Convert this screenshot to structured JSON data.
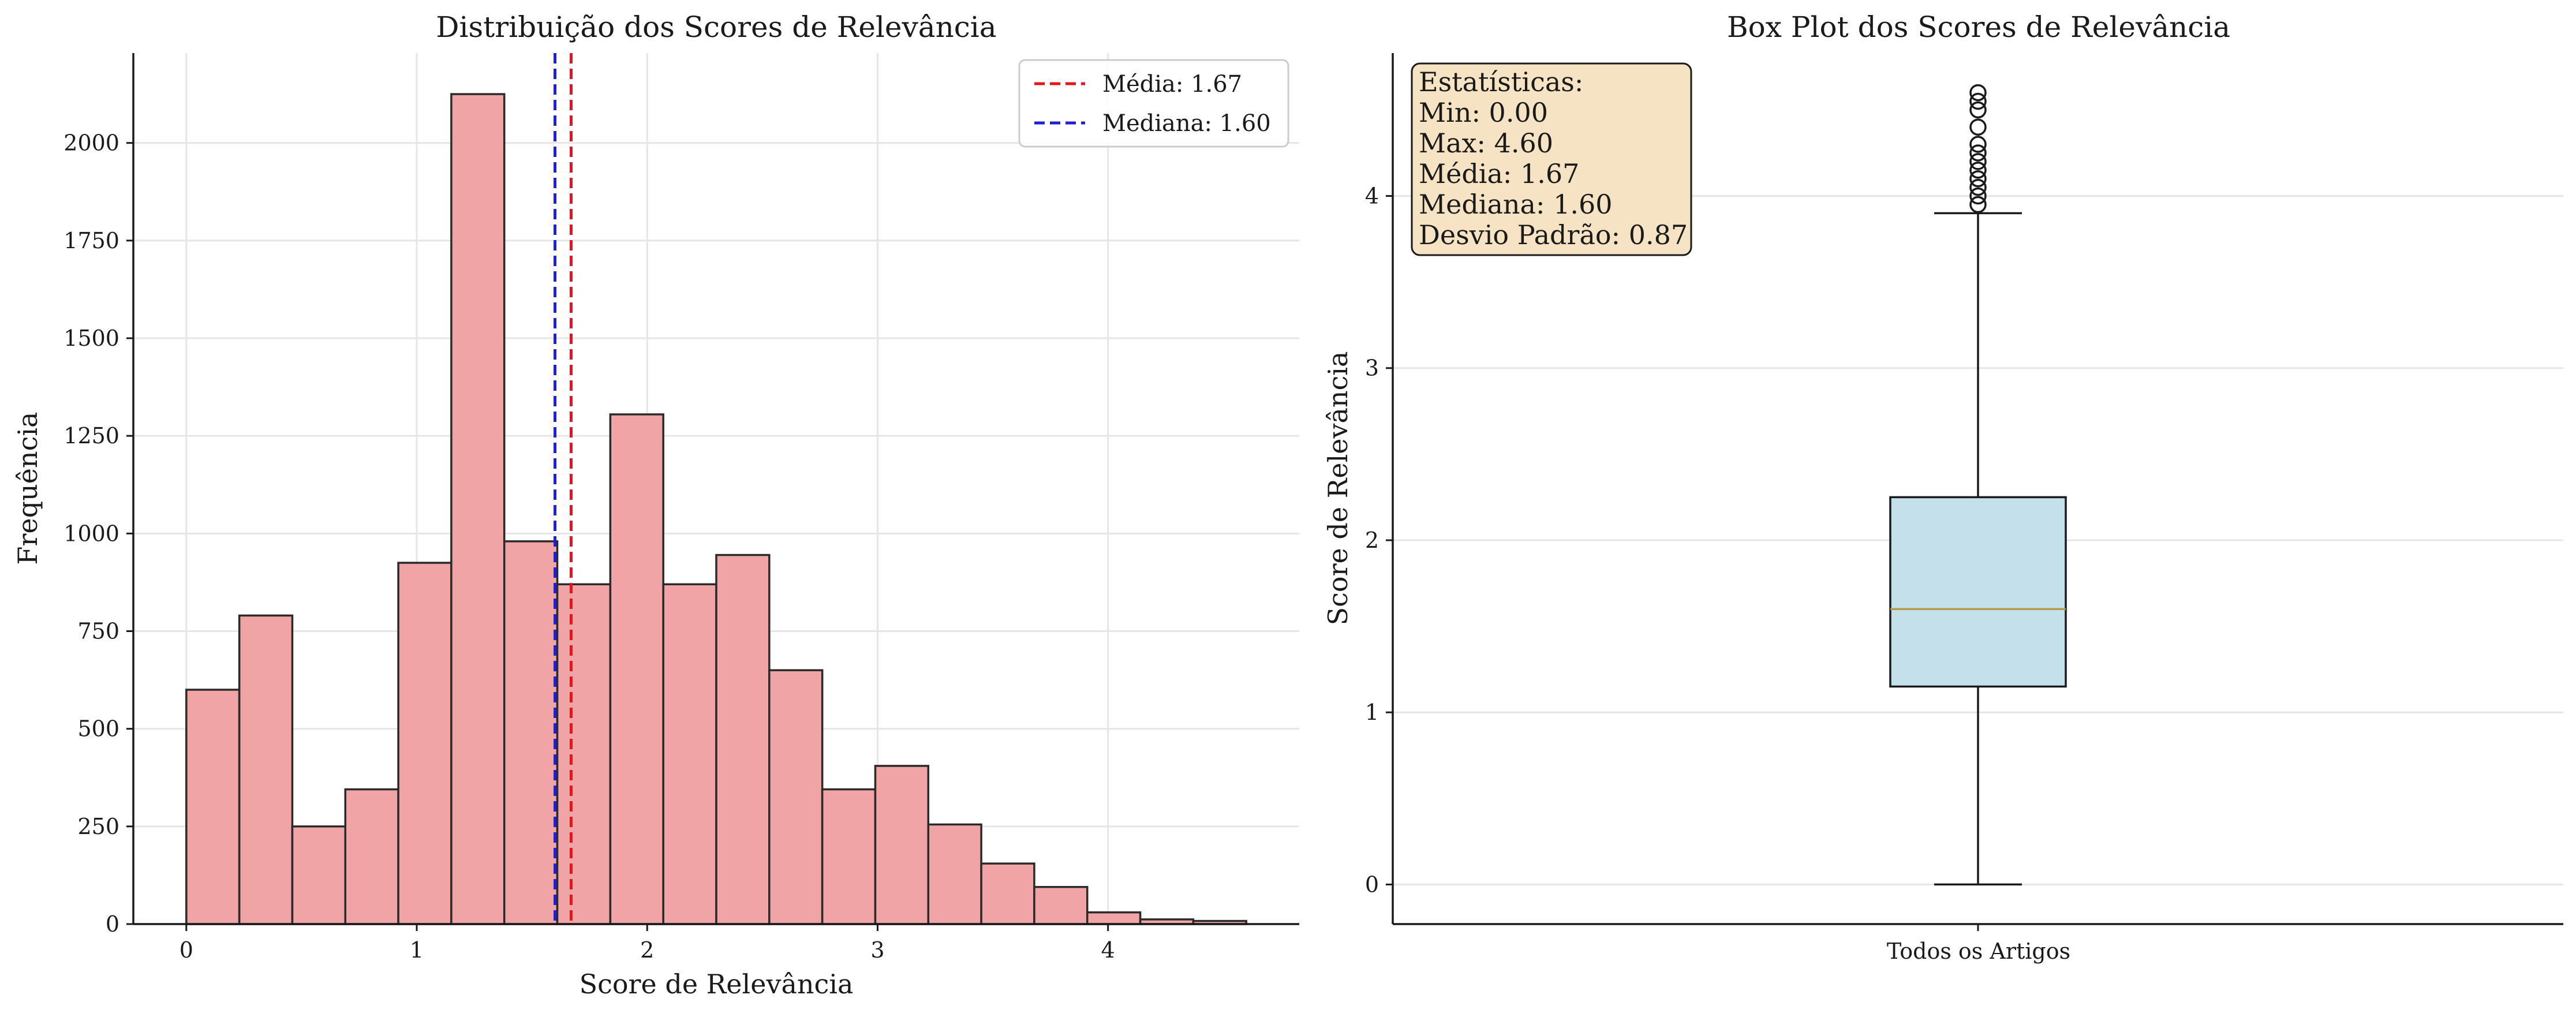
{
  "chart_data": [
    {
      "type": "bar",
      "subtype": "histogram",
      "title": "Distribuição dos Scores de Relevância",
      "xlabel": "Score de Relevância",
      "ylabel": "Frequência",
      "xlim": [
        -0.23,
        4.83
      ],
      "ylim": [
        0,
        2230
      ],
      "xticks": [
        0,
        1,
        2,
        3,
        4
      ],
      "yticks": [
        0,
        250,
        500,
        750,
        1000,
        1250,
        1500,
        1750,
        2000
      ],
      "grid": true,
      "legend_position": "top-right",
      "bin_edges": [
        0.0,
        0.23,
        0.46,
        0.69,
        0.92,
        1.15,
        1.38,
        1.61,
        1.84,
        2.07,
        2.3,
        2.53,
        2.76,
        2.99,
        3.22,
        3.45,
        3.68,
        3.91,
        4.14,
        4.37,
        4.6
      ],
      "values": [
        600,
        790,
        250,
        345,
        925,
        2125,
        980,
        870,
        1305,
        870,
        945,
        650,
        345,
        405,
        255,
        155,
        95,
        30,
        12,
        8
      ],
      "bar_color": "#f1a4a6",
      "reference_lines": [
        {
          "label": "Média: 1.67",
          "x": 1.67,
          "color": "#e8141c"
        },
        {
          "label": "Mediana: 1.60",
          "x": 1.6,
          "color": "#1f1fd6"
        }
      ]
    },
    {
      "type": "box",
      "title": "Box Plot dos Scores de Relevância",
      "ylabel": "Score de Relevância",
      "categories": [
        "Todos os Artigos"
      ],
      "ylim": [
        -0.23,
        4.83
      ],
      "yticks": [
        0,
        1,
        2,
        3,
        4
      ],
      "grid": true,
      "box": {
        "whisker_low": 0.0,
        "q1": 1.15,
        "median": 1.6,
        "q3": 2.25,
        "whisker_high": 3.9,
        "outliers": [
          3.95,
          4.0,
          4.05,
          4.1,
          4.15,
          4.2,
          4.25,
          4.3,
          4.4,
          4.5,
          4.55,
          4.6
        ]
      },
      "box_color": "#c4e1eb",
      "median_color": "#b59a4a",
      "stats_box": {
        "title": "Estatísticas:",
        "lines": [
          "Min: 0.00",
          "Max: 4.60",
          "Média: 1.67",
          "Mediana: 1.60",
          "Desvio Padrão: 0.87"
        ],
        "position": "top-left",
        "color": "#f6e3c3"
      }
    }
  ]
}
